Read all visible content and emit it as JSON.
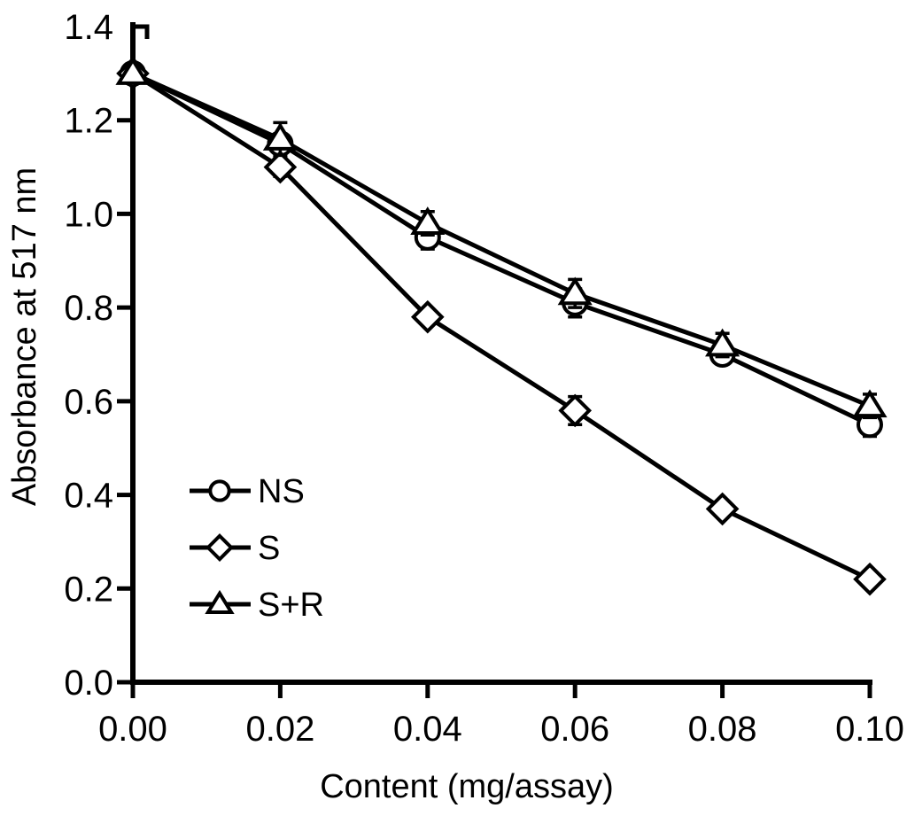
{
  "chart_data": {
    "type": "line",
    "xlabel": "Content (mg/assay)",
    "ylabel": "Absorbance at 517 nm",
    "x": [
      0.0,
      0.02,
      0.04,
      0.06,
      0.08,
      0.1
    ],
    "xlim": [
      0.0,
      0.1
    ],
    "ylim": [
      0.0,
      1.4
    ],
    "x_ticks": [
      "0.00",
      "0.02",
      "0.04",
      "0.06",
      "0.08",
      "0.10"
    ],
    "y_ticks": [
      "0.0",
      "0.2",
      "0.4",
      "0.6",
      "0.8",
      "1.0",
      "1.2",
      "1.4"
    ],
    "grid": false,
    "legend_position": "inside-lower-left",
    "colors": {
      "line": "#000000",
      "marker_fill": "#ffffff",
      "background": "#ffffff"
    },
    "series": [
      {
        "name": "NS",
        "marker": "circle",
        "values": [
          1.3,
          1.15,
          0.95,
          0.81,
          0.7,
          0.55
        ],
        "errors": [
          0.015,
          0.02,
          0.025,
          0.03,
          0.02,
          0.025
        ]
      },
      {
        "name": "S",
        "marker": "diamond",
        "values": [
          1.3,
          1.1,
          0.78,
          0.58,
          0.37,
          0.22
        ],
        "errors": [
          0.015,
          0.02,
          0.015,
          0.03,
          0.015,
          0.015
        ]
      },
      {
        "name": "S+R",
        "marker": "triangle",
        "values": [
          1.3,
          1.16,
          0.98,
          0.83,
          0.72,
          0.59
        ],
        "errors": [
          0.015,
          0.035,
          0.025,
          0.03,
          0.025,
          0.025
        ]
      }
    ]
  }
}
